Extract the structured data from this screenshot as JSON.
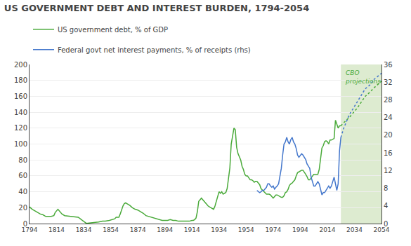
{
  "chart_data": {
    "type": "line",
    "title": "US GOVERNMENT DEBT AND INTEREST BURDEN, 1794-2054",
    "xlim": [
      1794,
      2054
    ],
    "xticks": [
      1794,
      1814,
      1834,
      1854,
      1874,
      1894,
      1914,
      1934,
      1954,
      1974,
      1994,
      2014,
      2034,
      2054
    ],
    "ylim": [
      0,
      200
    ],
    "yticks": [
      0,
      20,
      40,
      60,
      80,
      100,
      120,
      140,
      160,
      180,
      200
    ],
    "y2lim": [
      0,
      36
    ],
    "y2ticks": [
      0,
      4,
      8,
      12,
      16,
      20,
      24,
      28,
      32,
      36
    ],
    "grid": true,
    "legend": "top left",
    "highlight": {
      "x": [
        2024,
        2054
      ],
      "color": "#ddebd0",
      "label": "CBO\nprojections",
      "label_color": "#4aaa3a"
    },
    "series": [
      {
        "name": "US government debt, % of GDP",
        "color": "#4aaa3a",
        "line_style": "solid",
        "x": [
          1794,
          1796,
          1798,
          1800,
          1802,
          1804,
          1806,
          1808,
          1810,
          1812,
          1813,
          1815,
          1816,
          1817,
          1818,
          1820,
          1825,
          1830,
          1833,
          1835,
          1836,
          1837,
          1840,
          1843,
          1845,
          1848,
          1850,
          1853,
          1855,
          1857,
          1858,
          1860,
          1861,
          1862,
          1863,
          1864,
          1865,
          1866,
          1867,
          1868,
          1870,
          1872,
          1874,
          1876,
          1878,
          1880,
          1882,
          1884,
          1886,
          1888,
          1890,
          1892,
          1894,
          1896,
          1898,
          1900,
          1902,
          1904,
          1906,
          1908,
          1910,
          1912,
          1914,
          1915,
          1916,
          1917,
          1918,
          1919,
          1920,
          1921,
          1922,
          1923,
          1924,
          1926,
          1928,
          1930,
          1931,
          1932,
          1933,
          1934,
          1935,
          1936,
          1937,
          1938,
          1939,
          1940,
          1941,
          1942,
          1943,
          1944,
          1945,
          1946,
          1947,
          1948,
          1949,
          1950,
          1951,
          1952,
          1953,
          1954,
          1955,
          1956,
          1957,
          1958,
          1959,
          1960,
          1961,
          1962,
          1963,
          1964,
          1965,
          1966,
          1967,
          1968,
          1969,
          1970,
          1971,
          1972,
          1973,
          1974,
          1975,
          1976,
          1977,
          1978,
          1979,
          1980,
          1981,
          1982,
          1983,
          1984,
          1985,
          1986,
          1987,
          1988,
          1989,
          1990,
          1991,
          1992,
          1993,
          1994,
          1995,
          1996,
          1997,
          1998,
          1999,
          2000,
          2001,
          2002,
          2003,
          2004,
          2005,
          2006,
          2007,
          2008,
          2009,
          2010,
          2011,
          2012,
          2013,
          2014,
          2015,
          2016,
          2017,
          2018,
          2019,
          2020,
          2021,
          2022,
          2023,
          2024
        ],
        "values": [
          21,
          18,
          16,
          14,
          12,
          11,
          9,
          9,
          9,
          10,
          14,
          18,
          16,
          13,
          12,
          10,
          9,
          8,
          4,
          1,
          0.3,
          0.5,
          1,
          2,
          2,
          3,
          3,
          4,
          5,
          6,
          8,
          8,
          12,
          18,
          22,
          25,
          26,
          25,
          24,
          23,
          20,
          18,
          17,
          15,
          13,
          10,
          9,
          8,
          7,
          6,
          5,
          4,
          4,
          4,
          5,
          4,
          4,
          3,
          3,
          3,
          3,
          3,
          4,
          4,
          5,
          7,
          15,
          28,
          30,
          32,
          30,
          28,
          26,
          22,
          20,
          18,
          22,
          28,
          35,
          40,
          38,
          40,
          37,
          38,
          39,
          44,
          55,
          70,
          100,
          110,
          120,
          118,
          96,
          88,
          84,
          80,
          72,
          68,
          62,
          60,
          60,
          57,
          55,
          55,
          54,
          52,
          53,
          53,
          51,
          49,
          44,
          42,
          40,
          38,
          37,
          37,
          37,
          36,
          34,
          32,
          34,
          36,
          36,
          35,
          34,
          33,
          33,
          35,
          39,
          40,
          43,
          48,
          50,
          51,
          53,
          55,
          60,
          64,
          65,
          66,
          67,
          67,
          65,
          62,
          59,
          55,
          55,
          57,
          60,
          62,
          62,
          62,
          62,
          68,
          83,
          95,
          98,
          103,
          104,
          103,
          100,
          105,
          105,
          106,
          107,
          130,
          124,
          120,
          123,
          123
        ]
      },
      {
        "name": "US government debt, % of GDP",
        "color": "#4aaa3a",
        "line_style": "dotted",
        "x": [
          2024,
          2026,
          2028,
          2030,
          2032,
          2034,
          2036,
          2038,
          2040,
          2042,
          2044,
          2046,
          2048,
          2050,
          2052,
          2054
        ],
        "values": [
          123,
          127,
          130,
          133,
          137,
          141,
          145,
          150,
          155,
          160,
          163,
          166,
          170,
          173,
          176,
          179
        ]
      },
      {
        "name": "Federal govt net interest payments, % of receipts (rhs)",
        "color": "#4477cc",
        "line_style": "solid",
        "axis": "y2",
        "x": [
          1962,
          1963,
          1964,
          1965,
          1966,
          1967,
          1968,
          1969,
          1970,
          1971,
          1972,
          1973,
          1974,
          1975,
          1976,
          1977,
          1978,
          1979,
          1980,
          1981,
          1982,
          1983,
          1984,
          1985,
          1986,
          1987,
          1988,
          1989,
          1990,
          1991,
          1992,
          1993,
          1994,
          1995,
          1996,
          1997,
          1998,
          1999,
          2000,
          2001,
          2002,
          2003,
          2004,
          2005,
          2006,
          2007,
          2008,
          2009,
          2010,
          2011,
          2012,
          2013,
          2014,
          2015,
          2016,
          2017,
          2018,
          2019,
          2020,
          2021,
          2022,
          2023,
          2024
        ],
        "values": [
          7.5,
          7.2,
          7.0,
          7.2,
          7.5,
          7.5,
          7.8,
          8.2,
          9.0,
          9.0,
          8.5,
          8.2,
          8.5,
          7.8,
          8.2,
          8.5,
          9.0,
          10.5,
          12.5,
          15.5,
          18.0,
          18.5,
          19.5,
          18.5,
          18.0,
          19.0,
          19.5,
          18.5,
          18.0,
          17.0,
          15.5,
          15.0,
          15.5,
          15.8,
          15.5,
          15.0,
          14.5,
          13.5,
          13.0,
          12.5,
          10.5,
          9.5,
          8.5,
          8.5,
          9.0,
          9.5,
          9.0,
          7.5,
          6.5,
          7.0,
          7.0,
          7.5,
          8.0,
          8.5,
          8.0,
          8.5,
          9.5,
          10.5,
          9.0,
          7.5,
          9.0,
          16.5,
          19.5
        ]
      },
      {
        "name": "Federal govt net interest payments, % of receipts (rhs)",
        "color": "#4477cc",
        "line_style": "dotted",
        "axis": "y2",
        "x": [
          2024,
          2026,
          2028,
          2030,
          2032,
          2034,
          2036,
          2038,
          2040,
          2042,
          2044,
          2046,
          2048,
          2050,
          2052,
          2054
        ],
        "values": [
          19.5,
          21.5,
          23.0,
          24.5,
          25.5,
          26.5,
          27.5,
          28.5,
          29.5,
          30.5,
          31.0,
          31.5,
          32.5,
          33.0,
          33.5,
          34.0
        ]
      }
    ]
  }
}
